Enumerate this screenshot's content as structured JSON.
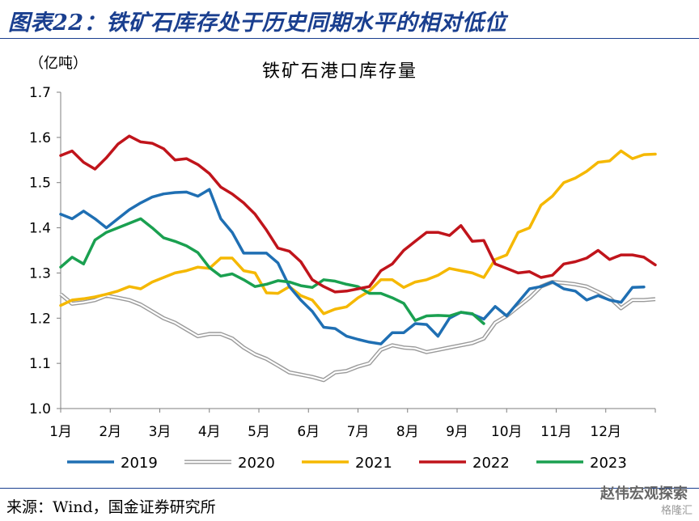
{
  "figure_title": "图表22：铁矿石库存处于历史同期水平的相对低位",
  "source": "来源：Wind，国金证券研究所",
  "watermark": "赵伟宏观探索",
  "watermark_sub": "格隆汇",
  "chart_data": {
    "type": "line",
    "title": "铁矿石港口库存量",
    "ylabel": "（亿吨）",
    "xlabel": "",
    "ylim": [
      1.0,
      1.7
    ],
    "yticks": [
      "1.0",
      "1.1",
      "1.2",
      "1.3",
      "1.4",
      "1.5",
      "1.6",
      "1.7"
    ],
    "x_tick_labels": [
      "1月",
      "2月",
      "3月",
      "4月",
      "5月",
      "6月",
      "7月",
      "8月",
      "9月",
      "10月",
      "11月",
      "12月"
    ],
    "x_unit": "week",
    "xlim": [
      1,
      53
    ],
    "grid": false,
    "legend_position": "bottom",
    "series": [
      {
        "name": "2019",
        "color": "#1f6fb3",
        "style": "solid",
        "x": [
          1,
          2,
          3,
          4,
          5,
          6,
          7,
          8,
          9,
          10,
          11,
          12,
          13,
          14,
          15,
          16,
          17,
          18,
          19,
          20,
          21,
          22,
          23,
          24,
          25,
          26,
          27,
          28,
          29,
          30,
          31,
          32,
          33,
          34,
          35,
          36,
          37,
          38,
          39,
          40,
          41,
          42,
          43,
          44,
          45,
          46,
          47,
          48,
          49,
          50,
          51,
          52
        ],
        "values": [
          1.43,
          1.42,
          1.437,
          1.42,
          1.4,
          1.42,
          1.44,
          1.455,
          1.468,
          1.475,
          1.478,
          1.479,
          1.47,
          1.485,
          1.42,
          1.39,
          1.344,
          1.344,
          1.344,
          1.322,
          1.27,
          1.24,
          1.215,
          1.18,
          1.177,
          1.16,
          1.153,
          1.147,
          1.143,
          1.168,
          1.168,
          1.188,
          1.186,
          1.16,
          1.2,
          1.213,
          1.209,
          1.198,
          1.226,
          1.205,
          1.235,
          1.265,
          1.27,
          1.28,
          1.265,
          1.26,
          1.24,
          1.25,
          1.24,
          1.235,
          1.268,
          1.269
        ]
      },
      {
        "name": "2020",
        "color": "#9a9a9a",
        "style": "double",
        "x": [
          1,
          2,
          3,
          4,
          5,
          6,
          7,
          8,
          9,
          10,
          11,
          12,
          13,
          14,
          15,
          16,
          17,
          18,
          19,
          20,
          21,
          22,
          23,
          24,
          25,
          26,
          27,
          28,
          29,
          30,
          31,
          32,
          33,
          34,
          35,
          36,
          37,
          38,
          39,
          40,
          41,
          42,
          43,
          44,
          45,
          46,
          47,
          48,
          49,
          50,
          51,
          52,
          53
        ],
        "values": [
          1.253,
          1.232,
          1.235,
          1.24,
          1.25,
          1.245,
          1.24,
          1.23,
          1.215,
          1.2,
          1.19,
          1.175,
          1.16,
          1.165,
          1.165,
          1.155,
          1.135,
          1.12,
          1.11,
          1.095,
          1.08,
          1.075,
          1.07,
          1.063,
          1.08,
          1.083,
          1.093,
          1.1,
          1.13,
          1.14,
          1.135,
          1.133,
          1.125,
          1.13,
          1.135,
          1.14,
          1.145,
          1.155,
          1.19,
          1.205,
          1.225,
          1.245,
          1.27,
          1.28,
          1.278,
          1.275,
          1.27,
          1.258,
          1.245,
          1.222,
          1.24,
          1.24,
          1.242
        ]
      },
      {
        "name": "2021",
        "color": "#f5b800",
        "style": "solid",
        "x": [
          1,
          2,
          3,
          4,
          5,
          6,
          7,
          8,
          9,
          10,
          11,
          12,
          13,
          14,
          15,
          16,
          17,
          18,
          19,
          20,
          21,
          22,
          23,
          24,
          25,
          26,
          27,
          28,
          29,
          30,
          31,
          32,
          33,
          34,
          35,
          36,
          37,
          38,
          39,
          40,
          41,
          42,
          43,
          44,
          45,
          46,
          47,
          48,
          49,
          50,
          51,
          52,
          53
        ],
        "values": [
          1.228,
          1.24,
          1.243,
          1.247,
          1.253,
          1.26,
          1.27,
          1.265,
          1.28,
          1.29,
          1.3,
          1.305,
          1.313,
          1.31,
          1.333,
          1.333,
          1.305,
          1.3,
          1.256,
          1.255,
          1.27,
          1.25,
          1.24,
          1.21,
          1.22,
          1.225,
          1.245,
          1.26,
          1.285,
          1.285,
          1.268,
          1.28,
          1.285,
          1.295,
          1.31,
          1.305,
          1.3,
          1.29,
          1.33,
          1.34,
          1.39,
          1.4,
          1.45,
          1.47,
          1.5,
          1.51,
          1.525,
          1.545,
          1.548,
          1.57,
          1.553,
          1.562,
          1.563
        ]
      },
      {
        "name": "2022",
        "color": "#c0141b",
        "style": "solid",
        "x": [
          1,
          2,
          3,
          4,
          5,
          6,
          7,
          8,
          9,
          10,
          11,
          12,
          13,
          14,
          15,
          16,
          17,
          18,
          19,
          20,
          21,
          22,
          23,
          24,
          25,
          26,
          27,
          28,
          29,
          30,
          31,
          32,
          33,
          34,
          35,
          36,
          37,
          38,
          39,
          40,
          41,
          42,
          43,
          44,
          45,
          46,
          47,
          48,
          49,
          50,
          51,
          52,
          53
        ],
        "values": [
          1.56,
          1.57,
          1.545,
          1.53,
          1.555,
          1.585,
          1.603,
          1.59,
          1.587,
          1.575,
          1.55,
          1.553,
          1.54,
          1.52,
          1.49,
          1.475,
          1.455,
          1.43,
          1.395,
          1.355,
          1.348,
          1.325,
          1.285,
          1.27,
          1.258,
          1.26,
          1.265,
          1.27,
          1.305,
          1.32,
          1.35,
          1.37,
          1.39,
          1.39,
          1.383,
          1.405,
          1.37,
          1.372,
          1.32,
          1.31,
          1.3,
          1.303,
          1.29,
          1.295,
          1.32,
          1.325,
          1.333,
          1.35,
          1.33,
          1.34,
          1.34,
          1.335,
          1.318
        ]
      },
      {
        "name": "2023",
        "color": "#1aa050",
        "style": "solid",
        "x": [
          1,
          2,
          3,
          4,
          5,
          6,
          7,
          8,
          9,
          10,
          11,
          12,
          13,
          14,
          15,
          16,
          17,
          18,
          19,
          20,
          21,
          22,
          23,
          24,
          25,
          26,
          27,
          28,
          29,
          30,
          31,
          32,
          33,
          34,
          35,
          36,
          37,
          38
        ],
        "values": [
          1.313,
          1.335,
          1.32,
          1.373,
          1.39,
          1.4,
          1.41,
          1.42,
          1.4,
          1.378,
          1.37,
          1.36,
          1.345,
          1.312,
          1.293,
          1.298,
          1.285,
          1.27,
          1.275,
          1.283,
          1.28,
          1.272,
          1.268,
          1.285,
          1.282,
          1.275,
          1.27,
          1.255,
          1.255,
          1.245,
          1.233,
          1.195,
          1.205,
          1.206,
          1.205,
          1.213,
          1.21,
          1.188
        ]
      }
    ]
  }
}
